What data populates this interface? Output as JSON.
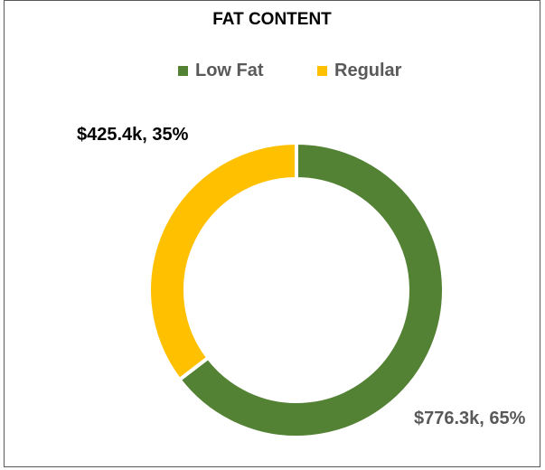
{
  "chart_data": {
    "type": "donut",
    "title": "FAT CONTENT",
    "legend_position": "top",
    "series": [
      {
        "name": "Low Fat",
        "value": 776.3,
        "percent": 65,
        "label": "$776.3k, 65%",
        "color": "#548235",
        "label_color": "#595959"
      },
      {
        "name": "Regular",
        "value": 425.4,
        "percent": 35,
        "label": "$425.4k, 35%",
        "color": "#FFC000",
        "label_color": "#000000"
      }
    ]
  }
}
